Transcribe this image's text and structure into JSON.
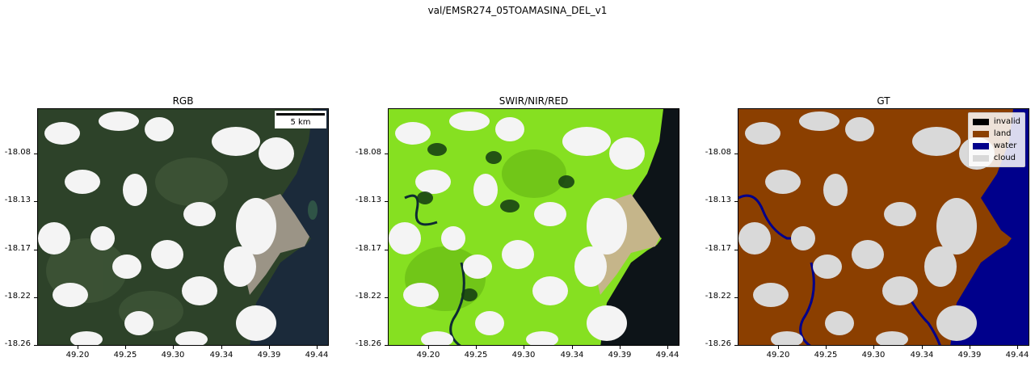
{
  "suptitle": "val/EMSR274_05TOAMASINA_DEL_v1",
  "panels": [
    {
      "title": "RGB"
    },
    {
      "title": "SWIR/NIR/RED"
    },
    {
      "title": "GT"
    }
  ],
  "scalebar": {
    "label": "5 km"
  },
  "xticks": [
    "49.20",
    "49.25",
    "49.30",
    "49.34",
    "49.39",
    "49.44"
  ],
  "yticks": [
    "-18.08",
    "-18.13",
    "-18.17",
    "-18.22",
    "-18.26"
  ],
  "legend": [
    {
      "label": "invalid",
      "color": "#000000"
    },
    {
      "label": "land",
      "color": "#8b3f00"
    },
    {
      "label": "water",
      "color": "#00008b"
    },
    {
      "label": "cloud",
      "color": "#d9d9d9"
    }
  ]
}
